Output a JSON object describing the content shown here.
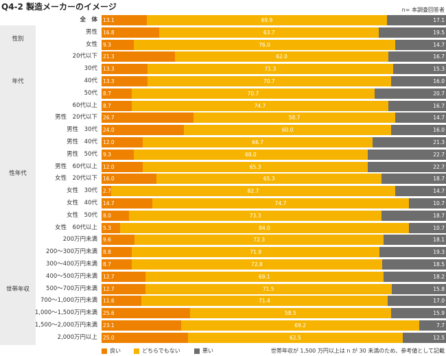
{
  "title": "Q4-2 製造メーカーのイメージ",
  "note_n": "n= 本調査回答者",
  "footnote": "世帯年収が 1,500 万円以上は n が 30 未満のため、参考値として記載",
  "colors": {
    "良い": "#ee8100",
    "どちらでもない": "#f6b400",
    "悪い": "#6d6d6d"
  },
  "chart_data": {
    "type": "bar",
    "orientation": "horizontal",
    "stacked": "100%",
    "series_names": [
      "良い",
      "どちらでもない",
      "悪い"
    ],
    "legend": "bottom",
    "groups": [
      {
        "label": "",
        "start": 0,
        "end": 0
      },
      {
        "label": "性別",
        "start": 1,
        "end": 2
      },
      {
        "label": "年代",
        "start": 3,
        "end": 7
      },
      {
        "label": "性年代",
        "start": 8,
        "end": 17
      },
      {
        "label": "世帯年収",
        "start": 18,
        "end": 26
      }
    ],
    "rows": [
      {
        "label": "全　体",
        "values": [
          13.1,
          69.9,
          17.1
        ]
      },
      {
        "label": "男性",
        "values": [
          16.8,
          63.7,
          19.5
        ]
      },
      {
        "label": "女性",
        "values": [
          9.3,
          76.0,
          14.7
        ]
      },
      {
        "label": "20代以下",
        "values": [
          21.3,
          62.0,
          16.7
        ]
      },
      {
        "label": "30代",
        "values": [
          13.3,
          71.3,
          15.3
        ]
      },
      {
        "label": "40代",
        "values": [
          13.3,
          70.7,
          16.0
        ]
      },
      {
        "label": "50代",
        "values": [
          8.7,
          70.7,
          20.7
        ]
      },
      {
        "label": "60代以上",
        "values": [
          8.7,
          74.7,
          16.7
        ]
      },
      {
        "label": "男性　20代以下",
        "values": [
          26.7,
          58.7,
          14.7
        ]
      },
      {
        "label": "男性　30代",
        "values": [
          24.0,
          60.0,
          16.0
        ]
      },
      {
        "label": "男性　40代",
        "values": [
          12.0,
          66.7,
          21.3
        ]
      },
      {
        "label": "男性　50代",
        "values": [
          9.3,
          68.0,
          22.7
        ]
      },
      {
        "label": "男性　60代以上",
        "values": [
          12.0,
          65.3,
          22.7
        ]
      },
      {
        "label": "女性　20代以下",
        "values": [
          16.0,
          65.3,
          18.7
        ]
      },
      {
        "label": "女性　30代",
        "values": [
          2.7,
          82.7,
          14.7
        ]
      },
      {
        "label": "女性　40代",
        "values": [
          14.7,
          74.7,
          10.7
        ]
      },
      {
        "label": "女性　50代",
        "values": [
          8.0,
          73.3,
          18.7
        ]
      },
      {
        "label": "女性　60代以上",
        "values": [
          5.3,
          84.0,
          10.7
        ]
      },
      {
        "label": "200万円未満",
        "values": [
          9.6,
          72.3,
          18.1
        ]
      },
      {
        "label": "200～300万円未満",
        "values": [
          8.8,
          71.9,
          19.3
        ]
      },
      {
        "label": "300～400万円未満",
        "values": [
          8.7,
          72.8,
          18.5
        ]
      },
      {
        "label": "400～500万円未満",
        "values": [
          12.7,
          69.1,
          18.2
        ]
      },
      {
        "label": "500～700万円未満",
        "values": [
          12.7,
          71.5,
          15.8
        ]
      },
      {
        "label": "700～1,000万円未満",
        "values": [
          11.6,
          71.4,
          17.0
        ]
      },
      {
        "label": "1,000～1,500万円未満",
        "values": [
          25.6,
          58.5,
          15.9
        ]
      },
      {
        "label": "1,500～2,000万円未満",
        "values": [
          23.1,
          69.2,
          7.7
        ]
      },
      {
        "label": "2,000万円以上",
        "values": [
          25.0,
          62.5,
          12.5
        ]
      }
    ]
  }
}
